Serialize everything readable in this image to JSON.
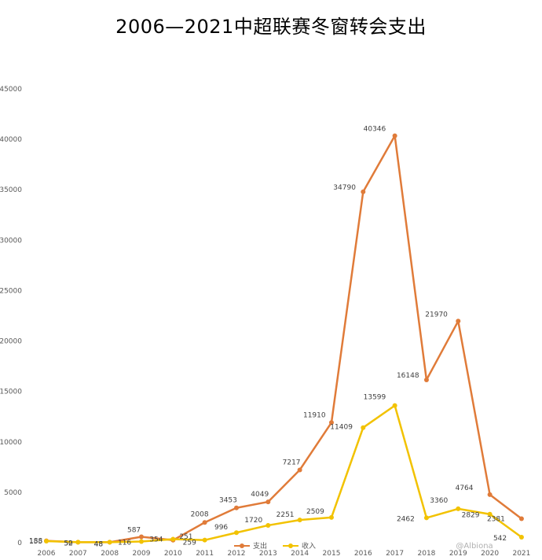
{
  "chart_data": {
    "type": "line",
    "title": "2006—2021中超联赛冬窗转会支出",
    "categories": [
      "2006",
      "2007",
      "2008",
      "2009",
      "2010",
      "2011",
      "2012",
      "2013",
      "2014",
      "2015",
      "2016",
      "2017",
      "2018",
      "2019",
      "2020",
      "2021"
    ],
    "ylim": [
      0,
      45000
    ],
    "yticks": [
      "0",
      "5000",
      "10000",
      "15000",
      "20000",
      "25000",
      "30000",
      "35000",
      "40000",
      "45000"
    ],
    "grid": false,
    "legend_position": "bottom-center",
    "series": [
      {
        "name": "支出",
        "color": "#E07B39",
        "values": [
          188,
          50,
          48,
          587,
          251,
          2008,
          3453,
          4049,
          7217,
          11910,
          34790,
          40346,
          16148,
          21970,
          4764,
          2381
        ],
        "labels": [
          "188",
          "50",
          "48",
          "587",
          "251",
          "2008",
          "3453",
          "4049",
          "7217",
          "11910",
          "34790",
          "40346",
          "16148",
          "21970",
          "4764",
          "2381"
        ]
      },
      {
        "name": "收入",
        "color": "#F2C200",
        "values": [
          155,
          52,
          48,
          116,
          354,
          259,
          996,
          1720,
          2251,
          2509,
          11409,
          13599,
          2462,
          3360,
          2829,
          542
        ],
        "labels": [
          "155",
          "52",
          "48",
          "116",
          "354",
          "259",
          "996",
          "1720",
          "2251",
          "2509",
          "11409",
          "13599",
          "2462",
          "3360",
          "2829",
          "542"
        ]
      }
    ]
  },
  "watermark": "@Albiona"
}
